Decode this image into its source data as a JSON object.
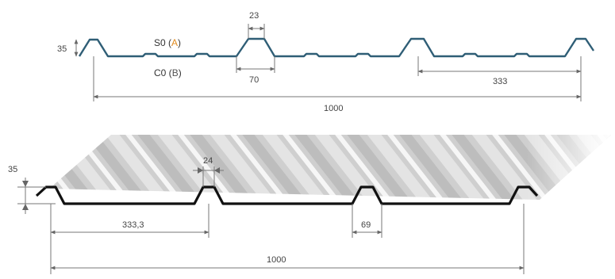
{
  "top_profile": {
    "label_front": "S0",
    "label_front_side": "A",
    "label_back": "C0",
    "label_back_side": "B",
    "dim_height": "35",
    "dim_rib_top": "23",
    "dim_rib_base": "70",
    "dim_pitch": "333",
    "dim_width": "1000",
    "color": "#2f5e76"
  },
  "bottom_profile": {
    "dim_height": "35",
    "dim_rib_top": "24",
    "dim_pitch": "333,3",
    "dim_rib_base": "69",
    "dim_width": "1000",
    "color": "#111111"
  }
}
